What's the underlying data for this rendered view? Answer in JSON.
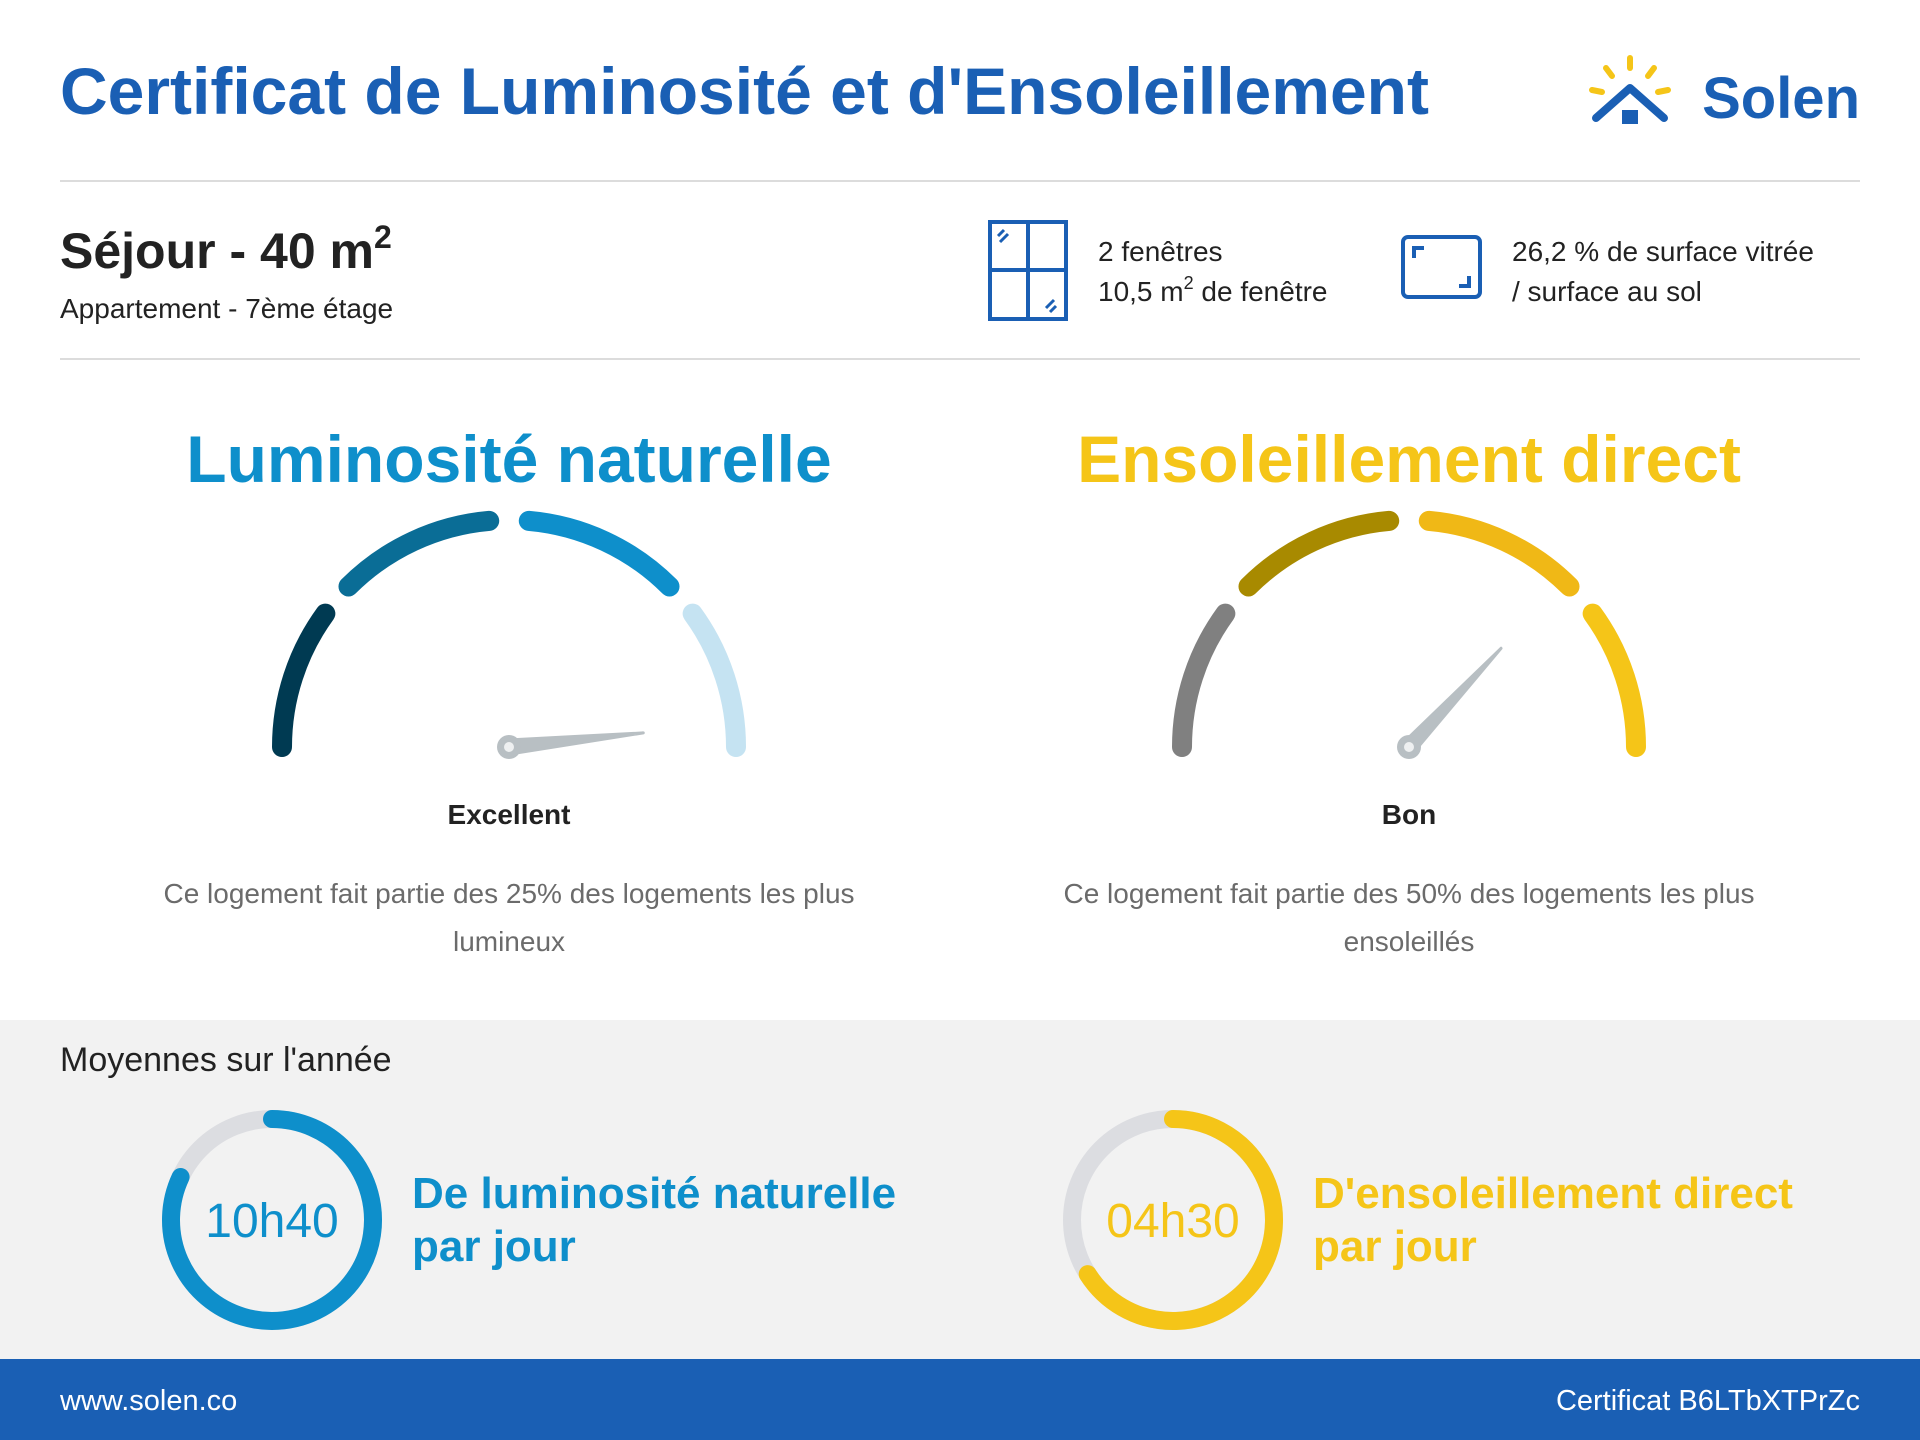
{
  "header": {
    "title": "Certificat de Luminosité et d'Ensoleillement",
    "brand": "Solen"
  },
  "room": {
    "title": "Séjour - 40 m",
    "title_sup": "2",
    "subtitle": "Appartement - 7ème étage"
  },
  "windows": {
    "count": "2 fenêtres",
    "area": "10,5 m",
    "area_sup": "2",
    "area_suffix": " de fenêtre"
  },
  "glazing": {
    "line1": "26,2 % de surface vitrée",
    "line2": "/ surface au sol"
  },
  "luminosity": {
    "title": "Luminosité naturelle",
    "rating": "Excellent",
    "description": "Ce logement fait partie des 25% des logements les plus lumineux"
  },
  "sunshine": {
    "title": "Ensoleillement direct",
    "rating": "Bon",
    "description": "Ce logement fait partie des 50% des logements les plus ensoleillés"
  },
  "averages": {
    "title": "Moyennes sur l'année",
    "luminosity": {
      "time": "10h40",
      "label_line1": "De luminosité naturelle",
      "label_line2": "par jour"
    },
    "sunshine": {
      "time": "04h30",
      "label_line1": "D'ensoleillement direct",
      "label_line2": "par jour"
    }
  },
  "footer": {
    "website": "www.solen.co",
    "certificate": "Certificat B6LTbXTPrZc"
  }
}
